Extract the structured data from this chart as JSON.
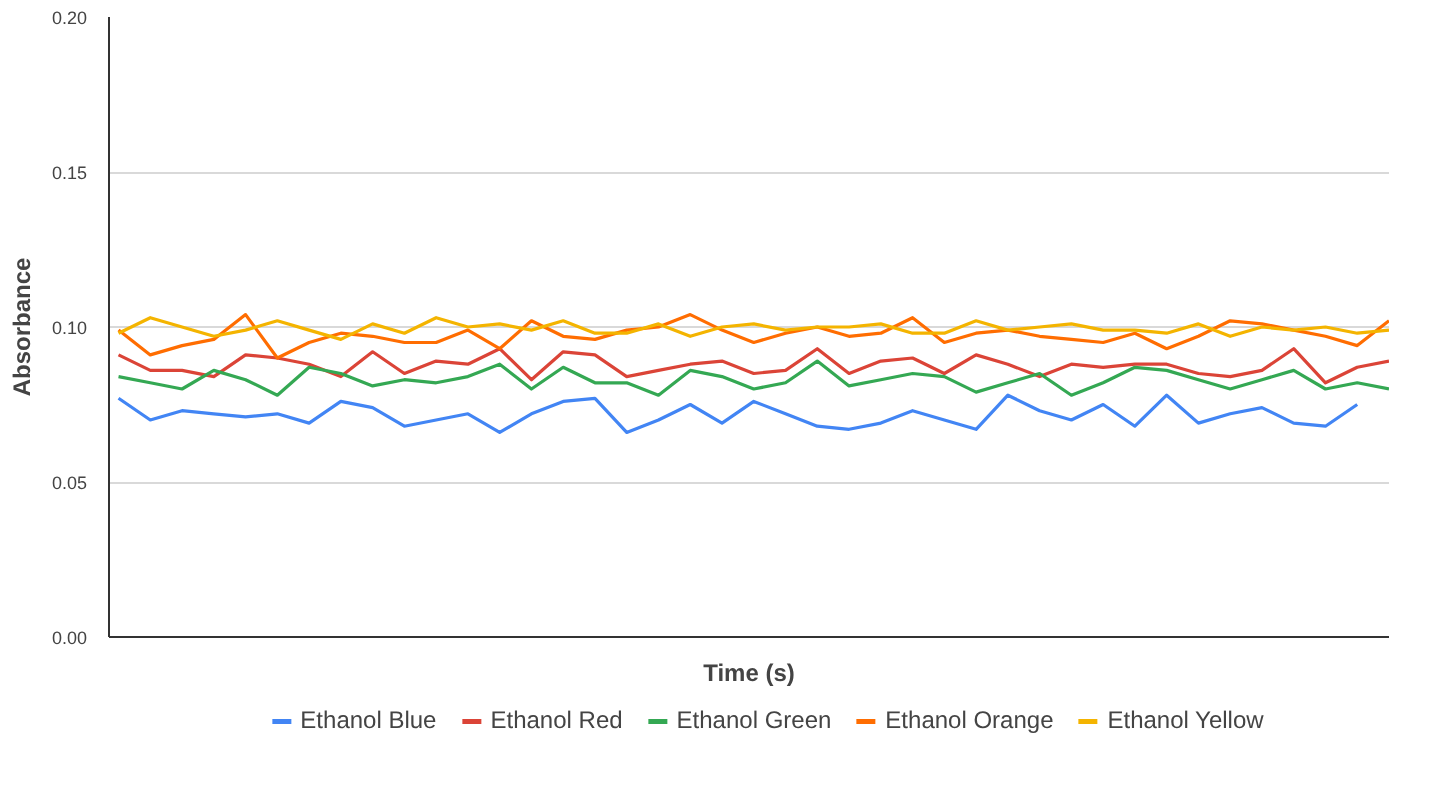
{
  "chart_data": {
    "type": "line",
    "xlabel": "Time (s)",
    "ylabel": "Absorbance",
    "categories": [
      null,
      null,
      null,
      null,
      null,
      null,
      null,
      null,
      null,
      null,
      null,
      null,
      null,
      null,
      null,
      null,
      null,
      null,
      null,
      null,
      null,
      null,
      null,
      null,
      null,
      null,
      null,
      null,
      null,
      null,
      null,
      null,
      null,
      null,
      null,
      null,
      null,
      null,
      null,
      null,
      null
    ],
    "series": [
      {
        "name": "Ethanol Blue",
        "color": "#4285f4",
        "values": [
          0.077,
          0.07,
          0.073,
          0.072,
          0.071,
          0.072,
          0.069,
          0.076,
          0.074,
          0.068,
          0.07,
          0.072,
          0.066,
          0.072,
          0.076,
          0.077,
          0.066,
          0.07,
          0.075,
          0.069,
          0.076,
          0.072,
          0.068,
          0.067,
          0.069,
          0.073,
          0.07,
          0.067,
          0.078,
          0.073,
          0.07,
          0.075,
          0.068,
          0.078,
          0.069,
          0.072,
          0.074,
          0.069,
          0.068,
          0.075,
          null
        ]
      },
      {
        "name": "Ethanol Red",
        "color": "#db4437",
        "values": [
          0.091,
          0.086,
          0.086,
          0.084,
          0.091,
          0.09,
          0.088,
          0.084,
          0.092,
          0.085,
          0.089,
          0.088,
          0.093,
          0.083,
          0.092,
          0.091,
          0.084,
          0.086,
          0.088,
          0.089,
          0.085,
          0.086,
          0.093,
          0.085,
          0.089,
          0.09,
          0.085,
          0.091,
          0.088,
          0.084,
          0.088,
          0.087,
          0.088,
          0.088,
          0.085,
          0.084,
          0.086,
          0.093,
          0.082,
          0.087,
          0.089
        ]
      },
      {
        "name": "Ethanol Green",
        "color": "#34a853",
        "values": [
          0.084,
          0.082,
          0.08,
          0.086,
          0.083,
          0.078,
          0.087,
          0.085,
          0.081,
          0.083,
          0.082,
          0.084,
          0.088,
          0.08,
          0.087,
          0.082,
          0.082,
          0.078,
          0.086,
          0.084,
          0.08,
          0.082,
          0.089,
          0.081,
          0.083,
          0.085,
          0.084,
          0.079,
          0.082,
          0.085,
          0.078,
          0.082,
          0.087,
          0.086,
          0.083,
          0.08,
          0.083,
          0.086,
          0.08,
          0.082,
          0.08
        ]
      },
      {
        "name": "Ethanol Orange",
        "color": "#ff6d01",
        "values": [
          0.099,
          0.091,
          0.094,
          0.096,
          0.104,
          0.09,
          0.095,
          0.098,
          0.097,
          0.095,
          0.095,
          0.099,
          0.093,
          0.102,
          0.097,
          0.096,
          0.099,
          0.1,
          0.104,
          0.099,
          0.095,
          0.098,
          0.1,
          0.097,
          0.098,
          0.103,
          0.095,
          0.098,
          0.099,
          0.097,
          0.096,
          0.095,
          0.098,
          0.093,
          0.097,
          0.102,
          0.101,
          0.099,
          0.097,
          0.094,
          0.102
        ]
      },
      {
        "name": "Ethanol Yellow",
        "color": "#f4b400",
        "values": [
          0.098,
          0.103,
          0.1,
          0.097,
          0.099,
          0.102,
          0.099,
          0.096,
          0.101,
          0.098,
          0.103,
          0.1,
          0.101,
          0.099,
          0.102,
          0.098,
          0.098,
          0.101,
          0.097,
          0.1,
          0.101,
          0.099,
          0.1,
          0.1,
          0.101,
          0.098,
          0.098,
          0.102,
          0.099,
          0.1,
          0.101,
          0.099,
          0.099,
          0.098,
          0.101,
          0.097,
          0.1,
          0.099,
          0.1,
          0.098,
          0.099
        ]
      }
    ],
    "ylim": [
      0,
      0.2
    ],
    "yticks": [
      {
        "value": 0,
        "label": "0.00"
      },
      {
        "value": 0.05,
        "label": "0.05"
      },
      {
        "value": 0.1,
        "label": "0.10"
      },
      {
        "value": 0.15,
        "label": "0.15"
      },
      {
        "value": 0.2,
        "label": "0.20"
      }
    ],
    "grid": "y",
    "legend": "bottom",
    "tick_labels": "y",
    "marker": "none",
    "line_style": "solid"
  }
}
